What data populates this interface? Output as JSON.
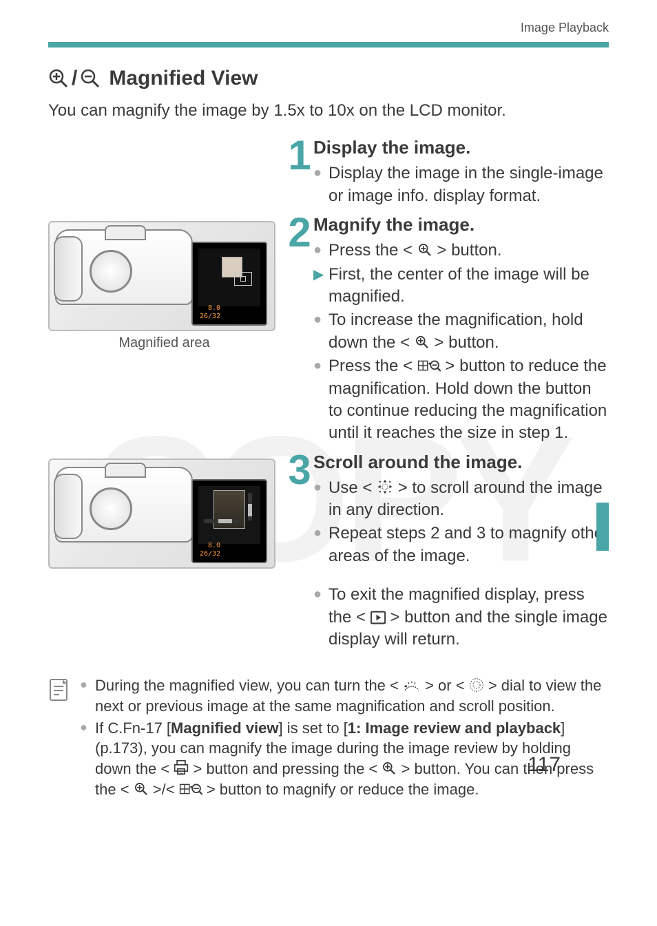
{
  "header": {
    "category": "Image Playback"
  },
  "section": {
    "title": "Magnified View",
    "intro": "You can magnify the image by 1.5x to 10x on the LCD monitor."
  },
  "steps": [
    {
      "num": "1",
      "heading": "Display the image.",
      "items": [
        {
          "type": "dot",
          "text": "Display the image in the single-image or image info. display format."
        }
      ]
    },
    {
      "num": "2",
      "heading": "Magnify the image.",
      "items": [
        {
          "type": "dot",
          "html": "Press the <__ICON_MAGPLUS__> button."
        },
        {
          "type": "arrow",
          "text": "First, the center of the image will be magnified."
        },
        {
          "type": "dot",
          "html": "To increase the magnification, hold down the <__ICON_MAGPLUS__> button."
        },
        {
          "type": "dot",
          "html": "Press the <__ICON_GRIDMINUS__> button to reduce the magnification. Hold down the button to continue reducing the magnification until it reaches the size in step 1."
        }
      ],
      "figure": {
        "caption": "Magnified area",
        "lcd": {
          "count": "26/32",
          "fstop": "8.0"
        }
      }
    },
    {
      "num": "3",
      "heading": "Scroll around the image.",
      "items": [
        {
          "type": "dot",
          "html": "Use <__ICON_MULTI__> to scroll around the image in any direction."
        },
        {
          "type": "dot",
          "text": "Repeat steps 2 and 3 to magnify other areas of the image."
        },
        {
          "type": "spacer"
        },
        {
          "type": "dot",
          "html": "To exit the magnified display, press the <__ICON_PLAY__> button and the single image display will return."
        }
      ],
      "figure": {
        "lcd": {
          "count": "26/32",
          "fstop": "8.0"
        }
      }
    }
  ],
  "notes": [
    {
      "html": "During the magnified view, you can turn the <__ICON_MAINDIAL__> or <__ICON_QCD__> dial to view the next or previous image at the same magnification and scroll position."
    },
    {
      "html": "If C.Fn-17 [<b>Magnified view</b>] is set to [<b>1: Image review and playback</b>] (p.173), you can magnify the image during the image review by holding down the <__ICON_PRINT__> button and pressing the <__ICON_MAGPLUS__> button. You can then press the <__ICON_MAGPLUS__>/<__ICON_GRIDMINUS__> button to magnify or reduce the image."
    }
  ],
  "page_number": "117",
  "colors": {
    "accent": "#4aa6a6",
    "text": "#3a3a3a",
    "bullet_grey": "#a8a8a8",
    "lcd_orange": "#ff9b3a"
  },
  "icons": {
    "magplus": "magnify-plus",
    "gridminus": "grid-magnify-minus",
    "multi": "multi-controller",
    "play": "playback",
    "maindial": "main-dial",
    "qcd": "quick-control-dial",
    "print": "print-share",
    "note": "note-page"
  }
}
